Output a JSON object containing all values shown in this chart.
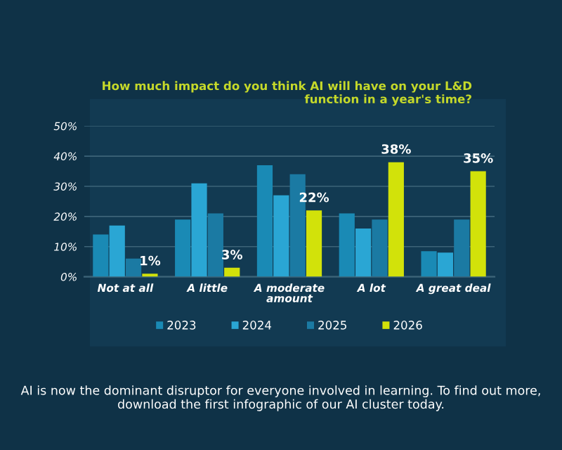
{
  "chart_data": {
    "type": "bar",
    "title": "How much impact do you think AI will have on your L&D\nfunction in a year's time?",
    "categories": [
      "Not at all",
      "A little",
      "A moderate\namount",
      "A lot",
      "A great deal"
    ],
    "series": [
      {
        "name": "2023",
        "color": "#1a8ab5",
        "values": [
          14,
          19,
          37,
          21,
          8.5
        ]
      },
      {
        "name": "2024",
        "color": "#2aa6d4",
        "values": [
          17,
          31,
          27,
          16,
          8
        ]
      },
      {
        "name": "2025",
        "color": "#1b7aa3",
        "values": [
          6,
          21,
          34,
          19,
          19
        ]
      },
      {
        "name": "2026",
        "color": "#d2e20a",
        "values": [
          1,
          3,
          22,
          38,
          35
        ],
        "value_labels": [
          "1%",
          "3%",
          "22%",
          "38%",
          "35%"
        ]
      }
    ],
    "ylim": [
      0,
      50
    ],
    "yticks": [
      {
        "value": 0,
        "label": "0%"
      },
      {
        "value": 10,
        "label": "10%"
      },
      {
        "value": 20,
        "label": "20%"
      },
      {
        "value": 30,
        "label": "30%"
      },
      {
        "value": 40,
        "label": "40%"
      },
      {
        "value": 50,
        "label": "50%"
      }
    ],
    "grid": "y",
    "legend": "bottom",
    "annotations": [
      "AI is now the dominant disruptor for everyone involved in learning. To find out more, download the first infographic of our AI cluster today."
    ]
  }
}
